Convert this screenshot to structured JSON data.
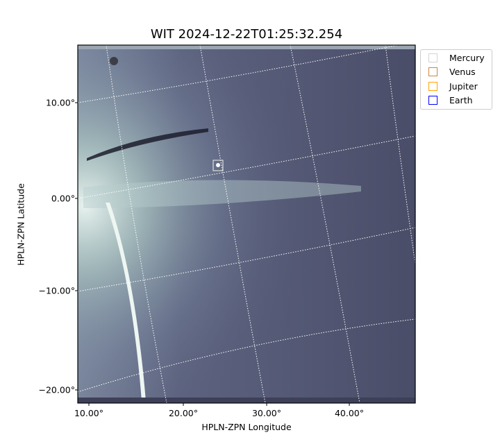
{
  "chart_data": {
    "type": "image",
    "title": "WIT 2024-12-22T01:25:32.254",
    "xlabel": "HPLN-ZPN Longitude",
    "ylabel": "HPLN-ZPN Latitude",
    "x_ticks": [
      "10.00°",
      "20.00°",
      "30.00°",
      "40.00°"
    ],
    "y_ticks": [
      "10.00°",
      "0.00°",
      "−10.00°",
      "−20.00°"
    ],
    "colormap": "bone",
    "grid": true,
    "legend_position": "outside-top-right",
    "legend": [
      {
        "name": "Mercury",
        "color": "#d3d3d3"
      },
      {
        "name": "Venus",
        "color": "#cd853f"
      },
      {
        "name": "Jupiter",
        "color": "#ffa500"
      },
      {
        "name": "Earth",
        "color": "#0000ff"
      }
    ]
  }
}
